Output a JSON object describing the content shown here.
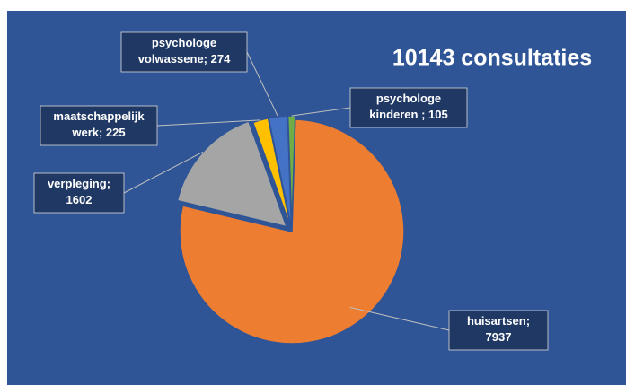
{
  "chart_data": {
    "type": "pie",
    "title": "10143 consultaties",
    "labels": [
      "huisartsen; 7937",
      "verpleging; 1602",
      "maatschappelijk werk; 225",
      "psychologe volwassene; 274",
      "psychologe kinderen ; 105"
    ],
    "values": [
      7937,
      1602,
      225,
      274,
      105
    ],
    "colors": [
      "#ed7d31",
      "#a5a5a5",
      "#ffc000",
      "#4472c4",
      "#70ad47"
    ]
  }
}
